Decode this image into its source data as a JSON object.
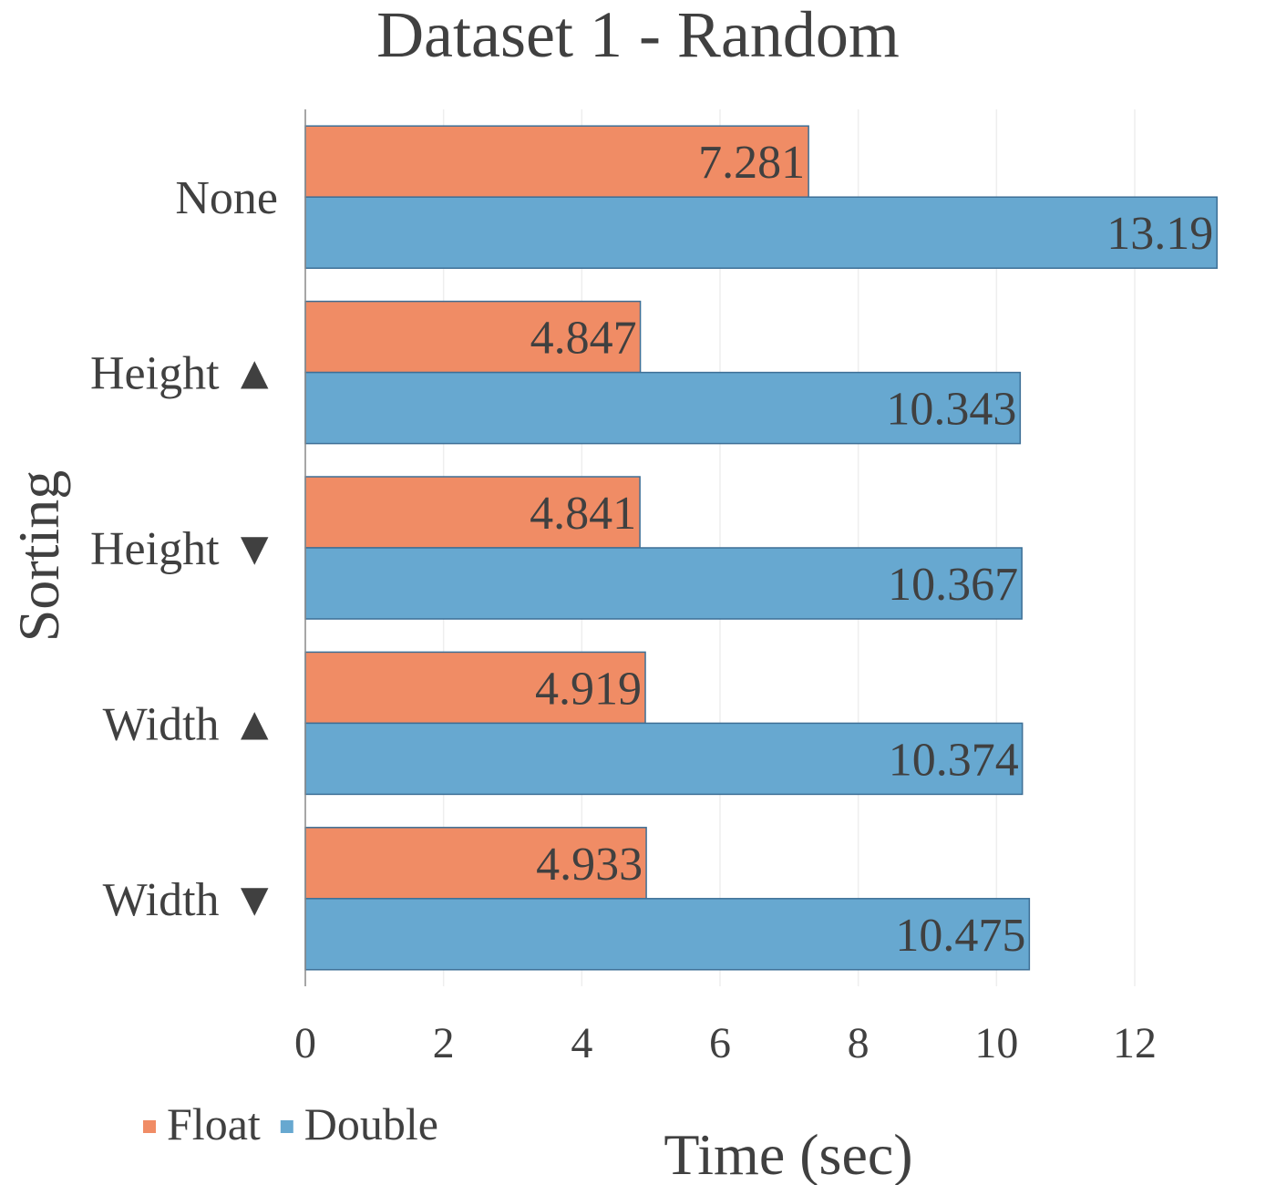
{
  "chart_data": {
    "type": "bar",
    "orientation": "horizontal",
    "title": "Dataset 1 - Random",
    "xlabel": "Time (sec)",
    "ylabel": "Sorting",
    "categories": [
      "None",
      "Height ▲",
      "Height ▼",
      "Width ▲",
      "Width ▼"
    ],
    "series": [
      {
        "name": "Float",
        "color": "#f08c65",
        "values": [
          7.281,
          4.847,
          4.841,
          4.919,
          4.933
        ],
        "labels": [
          "7.281",
          "4.847",
          "4.841",
          "4.919",
          "4.933"
        ]
      },
      {
        "name": "Double",
        "color": "#67a8d0",
        "values": [
          13.19,
          10.343,
          10.367,
          10.374,
          10.475
        ],
        "labels": [
          "13.19",
          "10.343",
          "10.367",
          "10.374",
          "10.475"
        ]
      }
    ],
    "xlim": [
      0,
      13.5
    ],
    "xticks": [
      0,
      2,
      4,
      6,
      8,
      10,
      12
    ],
    "xtick_labels": [
      "0",
      "2",
      "4",
      "6",
      "8",
      "10",
      "12"
    ],
    "grid": "vertical",
    "legend_position": "bottom-left"
  }
}
